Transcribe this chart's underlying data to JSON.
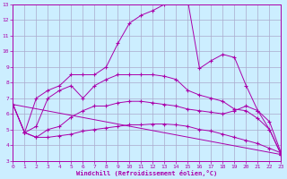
{
  "background_color": "#cceeff",
  "grid_color": "#aaaacc",
  "line_color": "#aa00aa",
  "xlim": [
    0,
    23
  ],
  "ylim": [
    3,
    13
  ],
  "xlabel": "Windchill (Refroidissement éolien,°C)",
  "xticks": [
    0,
    1,
    2,
    3,
    4,
    5,
    6,
    7,
    8,
    9,
    10,
    11,
    12,
    13,
    14,
    15,
    16,
    17,
    18,
    19,
    20,
    21,
    22,
    23
  ],
  "yticks": [
    3,
    4,
    5,
    6,
    7,
    8,
    9,
    10,
    11,
    12,
    13
  ],
  "series": [
    {
      "x": [
        1,
        2,
        3,
        4,
        5,
        6,
        7,
        8,
        9,
        10,
        11,
        12,
        13,
        14,
        15,
        16,
        17,
        18,
        19,
        20,
        21,
        22,
        23
      ],
      "y": [
        4.8,
        7.0,
        7.5,
        7.8,
        8.5,
        8.5,
        8.5,
        9.0,
        10.5,
        11.8,
        12.3,
        12.6,
        13.0,
        13.2,
        13.2,
        8.9,
        9.4,
        9.8,
        9.6,
        7.8,
        6.2,
        5.0,
        3.4
      ]
    },
    {
      "x": [
        0,
        1,
        2,
        3,
        4,
        5,
        6,
        7,
        8,
        9,
        10,
        11,
        12,
        13,
        14,
        15,
        16,
        17,
        18,
        19,
        20,
        21,
        22,
        23
      ],
      "y": [
        6.6,
        4.8,
        5.2,
        7.0,
        7.5,
        7.8,
        7.0,
        7.8,
        8.2,
        8.5,
        8.5,
        8.5,
        8.5,
        8.4,
        8.2,
        7.5,
        7.2,
        7.0,
        6.8,
        6.3,
        6.2,
        5.7,
        5.0,
        3.4
      ]
    },
    {
      "x": [
        0,
        1,
        2,
        3,
        4,
        5,
        6,
        7,
        8,
        9,
        10,
        11,
        12,
        13,
        14,
        15,
        16,
        17,
        18,
        19,
        20,
        21,
        22,
        23
      ],
      "y": [
        6.6,
        4.8,
        4.5,
        5.0,
        5.2,
        5.8,
        6.2,
        6.5,
        6.5,
        6.7,
        6.8,
        6.8,
        6.7,
        6.6,
        6.5,
        6.3,
        6.2,
        6.1,
        6.0,
        6.2,
        6.5,
        6.2,
        5.5,
        3.5
      ]
    },
    {
      "x": [
        0,
        1,
        2,
        3,
        4,
        5,
        6,
        7,
        8,
        9,
        10,
        11,
        12,
        13,
        14,
        15,
        16,
        17,
        18,
        19,
        20,
        21,
        22,
        23
      ],
      "y": [
        6.6,
        4.8,
        4.5,
        4.5,
        4.6,
        4.7,
        4.9,
        5.0,
        5.1,
        5.2,
        5.3,
        5.3,
        5.35,
        5.35,
        5.3,
        5.2,
        5.0,
        4.9,
        4.7,
        4.5,
        4.3,
        4.1,
        3.8,
        3.5
      ]
    },
    {
      "x": [
        0,
        23
      ],
      "y": [
        6.6,
        3.4
      ]
    }
  ]
}
